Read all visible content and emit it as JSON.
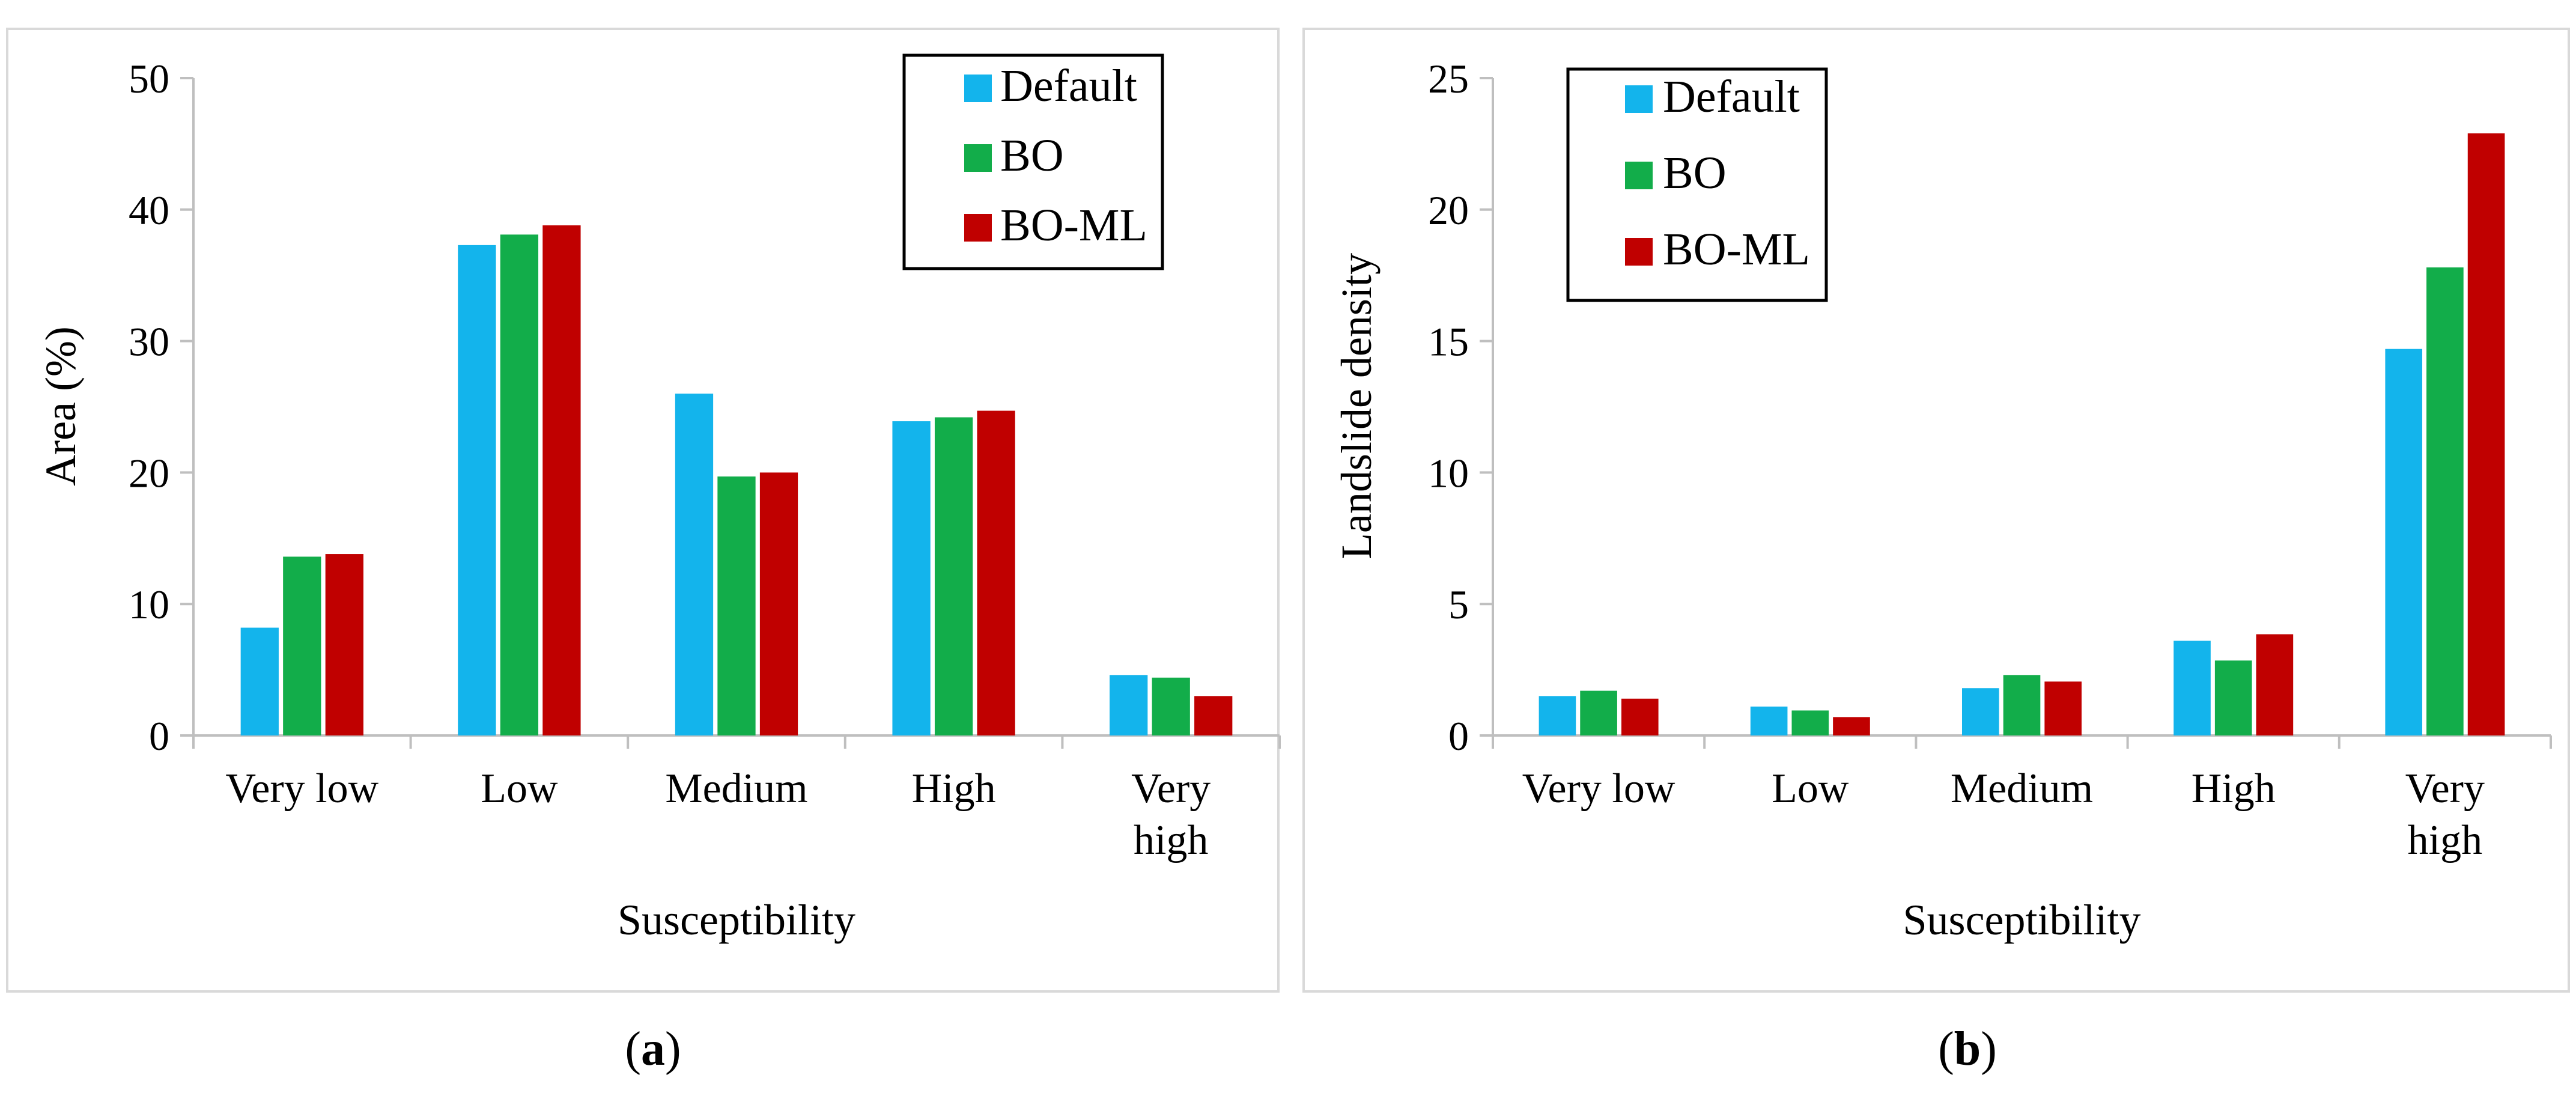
{
  "colors": {
    "Default": "#13b4ec",
    "BO": "#12ad4a",
    "BO-ML": "#c00000",
    "axis": "#bfbfbf",
    "frame": "#d9d9d9"
  },
  "chart_data": [
    {
      "type": "bar",
      "caption_letter": "a",
      "xlabel": "Susceptibility",
      "ylabel": "Area (%)",
      "ylim": [
        0,
        50
      ],
      "yticks": [
        0,
        10,
        20,
        30,
        40,
        50
      ],
      "categories": [
        [
          "Very low"
        ],
        [
          "Low"
        ],
        [
          "Medium"
        ],
        [
          "High"
        ],
        [
          "Very",
          "high"
        ]
      ],
      "legend_position": "top-right",
      "series": [
        {
          "name": "Default",
          "values": [
            8.2,
            37.3,
            26.0,
            23.9,
            4.6
          ]
        },
        {
          "name": "BO",
          "values": [
            13.6,
            38.1,
            19.7,
            24.2,
            4.4
          ]
        },
        {
          "name": "BO-ML",
          "values": [
            13.8,
            38.8,
            20.0,
            24.7,
            3.0
          ]
        }
      ]
    },
    {
      "type": "bar",
      "caption_letter": "b",
      "xlabel": "Susceptibility",
      "ylabel": "Landslide density",
      "ylim": [
        0,
        25
      ],
      "yticks": [
        0,
        5,
        10,
        15,
        20,
        25
      ],
      "categories": [
        [
          "Very low"
        ],
        [
          "Low"
        ],
        [
          "Medium"
        ],
        [
          "High"
        ],
        [
          "Very",
          "high"
        ]
      ],
      "legend_position": "top-left",
      "series": [
        {
          "name": "Default",
          "values": [
            1.5,
            1.1,
            1.8,
            3.6,
            14.7
          ]
        },
        {
          "name": "BO",
          "values": [
            1.7,
            0.95,
            2.3,
            2.85,
            17.8
          ]
        },
        {
          "name": "BO-ML",
          "values": [
            1.4,
            0.7,
            2.05,
            3.85,
            22.9
          ]
        }
      ]
    }
  ]
}
